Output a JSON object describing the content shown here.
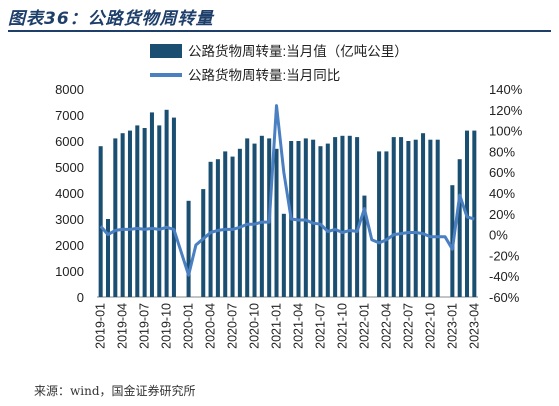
{
  "header": {
    "title": "图表36：公路货物周转量"
  },
  "source": "来源：wind，国金证券研究所",
  "chart_data": {
    "type": "bar+line",
    "x": [
      "2019-01",
      "2019-02",
      "2019-03",
      "2019-04",
      "2019-05",
      "2019-06",
      "2019-07",
      "2019-08",
      "2019-09",
      "2019-10",
      "2019-11",
      "2019-12",
      "2020-01",
      "2020-02",
      "2020-03",
      "2020-04",
      "2020-05",
      "2020-06",
      "2020-07",
      "2020-08",
      "2020-09",
      "2020-10",
      "2020-11",
      "2020-12",
      "2021-01",
      "2021-02",
      "2021-03",
      "2021-04",
      "2021-05",
      "2021-06",
      "2021-07",
      "2021-08",
      "2021-09",
      "2021-10",
      "2021-11",
      "2021-12",
      "2022-01",
      "2022-02",
      "2022-03",
      "2022-04",
      "2022-05",
      "2022-06",
      "2022-07",
      "2022-08",
      "2022-09",
      "2022-10",
      "2022-11",
      "2022-12",
      "2023-01",
      "2023-02",
      "2023-03",
      "2023-04"
    ],
    "xtick_labels": [
      "2019-01",
      "2019-04",
      "2019-07",
      "2019-10",
      "2020-01",
      "2020-04",
      "2020-07",
      "2020-10",
      "2021-01",
      "2021-04",
      "2021-07",
      "2021-10",
      "2022-01",
      "2022-04",
      "2022-07",
      "2022-10",
      "2023-01",
      "2023-04"
    ],
    "series": [
      {
        "name": "公路货物周转量:当月值（亿吨公里）",
        "axis": "left",
        "type": "bar",
        "color": "#1b4f72",
        "values": [
          5800,
          3000,
          6100,
          6300,
          6400,
          6600,
          6500,
          7100,
          6600,
          7200,
          6900,
          null,
          3700,
          null,
          4150,
          5200,
          5300,
          5600,
          5400,
          5700,
          6100,
          5900,
          6200,
          6100,
          5700,
          3200,
          6000,
          6000,
          6100,
          6050,
          5800,
          5900,
          6150,
          6200,
          6200,
          6150,
          3900,
          null,
          5600,
          5600,
          6150,
          6150,
          6000,
          6050,
          6300,
          6050,
          6050,
          null,
          4300,
          5300,
          6400,
          6400
        ]
      },
      {
        "name": "公路货物周转量:当月同比",
        "axis": "right",
        "type": "line",
        "color": "#4a7fc1",
        "values": [
          8,
          0,
          4,
          5,
          5,
          6,
          5,
          6,
          5,
          7,
          5,
          null,
          -39,
          -10,
          -4,
          2,
          4,
          5,
          5,
          7,
          10,
          10,
          12,
          12,
          124,
          60,
          15,
          14,
          14,
          11,
          10,
          3,
          5,
          2,
          4,
          3,
          25,
          -5,
          -8,
          -5,
          0,
          1,
          2,
          2,
          1,
          -2,
          -2,
          -2,
          -14,
          38,
          17,
          15
        ]
      }
    ],
    "y_left": {
      "ticks": [
        "0",
        "1000",
        "2000",
        "3000",
        "4000",
        "5000",
        "6000",
        "7000",
        "8000"
      ],
      "range": [
        0,
        8000
      ]
    },
    "y_right": {
      "ticks": [
        "-60%",
        "-40%",
        "-20%",
        "0%",
        "20%",
        "40%",
        "60%",
        "80%",
        "100%",
        "120%",
        "140%"
      ],
      "range": [
        -60,
        140
      ]
    },
    "legend": [
      "公路货物周转量:当月值（亿吨公里）",
      "公路货物周转量:当月同比"
    ],
    "legend_position": "top",
    "grid": false
  }
}
